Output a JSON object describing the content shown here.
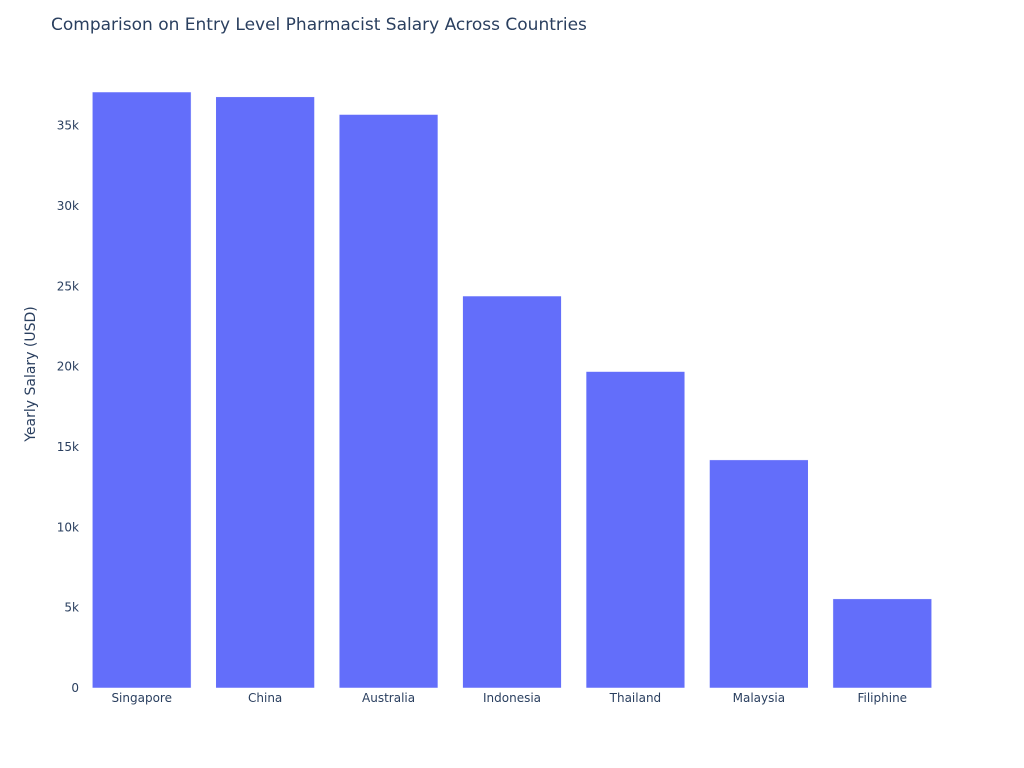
{
  "chart_data": {
    "type": "bar",
    "title": "Comparison on Entry Level Pharmacist Salary Across Countries",
    "xlabel": "",
    "ylabel": "Yearly Salary (USD)",
    "categories": [
      "Singapore",
      "China",
      "Australia",
      "Indonesia",
      "Thailand",
      "Malaysia",
      "Filiphine"
    ],
    "values": [
      37100,
      36800,
      35700,
      24400,
      19700,
      14200,
      5550
    ],
    "ylim": [
      0,
      37100
    ],
    "yticks": [
      0,
      5000,
      10000,
      15000,
      20000,
      25000,
      30000,
      35000
    ],
    "ytick_labels": [
      "0",
      "5k",
      "10k",
      "15k",
      "20k",
      "25k",
      "30k",
      "35k"
    ],
    "grid": false,
    "legend": "none",
    "bar_color": "#636efa"
  }
}
